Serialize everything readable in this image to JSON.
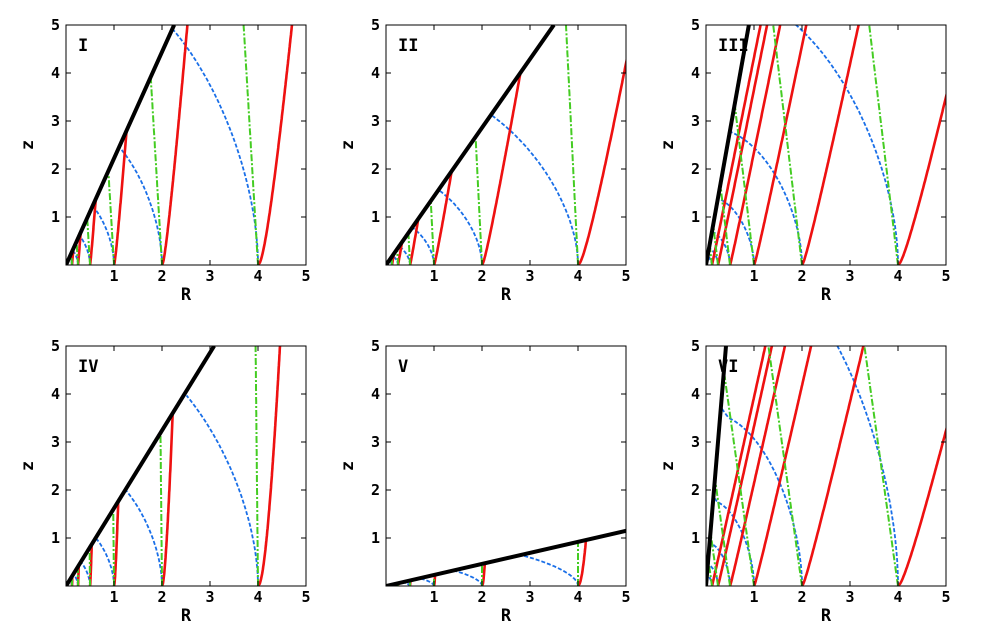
{
  "chart_data": [
    {
      "type": "line",
      "panel_label": "I",
      "xlabel": "R",
      "ylabel": "z",
      "xlim": [
        0,
        5
      ],
      "ylim": [
        0,
        5
      ],
      "xticks": [
        "1",
        "2",
        "3",
        "4",
        "5"
      ],
      "yticks": [
        "1",
        "2",
        "3",
        "4",
        "5"
      ],
      "boundary_slope": 2.22,
      "roots": [
        0.125,
        0.25,
        0.5,
        1,
        2,
        4
      ],
      "blue_stretch": 0.95,
      "red_tilt": 0.07,
      "green_tilt": -0.06
    },
    {
      "type": "line",
      "panel_label": "II",
      "xlabel": "R",
      "ylabel": "z",
      "xlim": [
        0,
        5
      ],
      "ylim": [
        0,
        5
      ],
      "xticks": [
        "1",
        "2",
        "3",
        "4",
        "5"
      ],
      "yticks": [
        "1",
        "2",
        "3",
        "4",
        "5"
      ],
      "boundary_slope": 1.43,
      "roots": [
        0.125,
        0.25,
        0.5,
        1,
        2,
        4
      ],
      "blue_stretch": 0.6,
      "red_tilt": 0.16,
      "green_tilt": -0.05
    },
    {
      "type": "line",
      "panel_label": "III",
      "xlabel": "R",
      "ylabel": "z",
      "xlim": [
        0,
        5
      ],
      "ylim": [
        0,
        5
      ],
      "xticks": [
        "1",
        "2",
        "3",
        "4",
        "5"
      ],
      "yticks": [
        "1",
        "2",
        "3",
        "4",
        "5"
      ],
      "boundary_slope": 5.6,
      "roots": [
        0.125,
        0.25,
        0.5,
        1,
        2,
        4
      ],
      "blue_stretch": 0.9,
      "red_tilt": 0.2,
      "green_tilt": -0.12
    },
    {
      "type": "line",
      "panel_label": "IV",
      "xlabel": "R",
      "ylabel": "z",
      "xlim": [
        0,
        5
      ],
      "ylim": [
        0,
        5
      ],
      "xticks": [
        "1",
        "2",
        "3",
        "4",
        "5"
      ],
      "yticks": [
        "1",
        "2",
        "3",
        "4",
        "5"
      ],
      "boundary_slope": 1.62,
      "roots": [
        0.125,
        0.25,
        0.5,
        1,
        2,
        4
      ],
      "blue_stretch": 0.83,
      "red_tilt": 0.02,
      "green_tilt": -0.01
    },
    {
      "type": "line",
      "panel_label": "V",
      "xlabel": "R",
      "ylabel": "z",
      "xlim": [
        0,
        5
      ],
      "ylim": [
        0,
        5
      ],
      "xticks": [
        "1",
        "2",
        "3",
        "4",
        "5"
      ],
      "yticks": [
        "1",
        "2",
        "3",
        "4",
        "5"
      ],
      "boundary_slope": 0.23,
      "roots": [
        0.125,
        0.25,
        0.5,
        1,
        2,
        4
      ],
      "blue_stretch": 0.15,
      "red_tilt": 0.01,
      "green_tilt": 0
    },
    {
      "type": "line",
      "panel_label": "VI",
      "xlabel": "R",
      "ylabel": "z",
      "xlim": [
        0,
        5
      ],
      "ylim": [
        0,
        5
      ],
      "xticks": [
        "1",
        "2",
        "3",
        "4",
        "5"
      ],
      "yticks": [
        "1",
        "2",
        "3",
        "4",
        "5"
      ],
      "boundary_slope": 12,
      "roots": [
        0.125,
        0.25,
        0.5,
        1,
        2,
        4
      ],
      "blue_stretch": 1.13,
      "red_tilt": 0.22,
      "green_tilt": -0.14
    }
  ],
  "colors": {
    "boundary": "#000000",
    "red_family": "#ee1111",
    "blue_family": "#1a6fe8",
    "green_family": "#44cc22",
    "frame": "#000000",
    "background": "#ffffff"
  }
}
